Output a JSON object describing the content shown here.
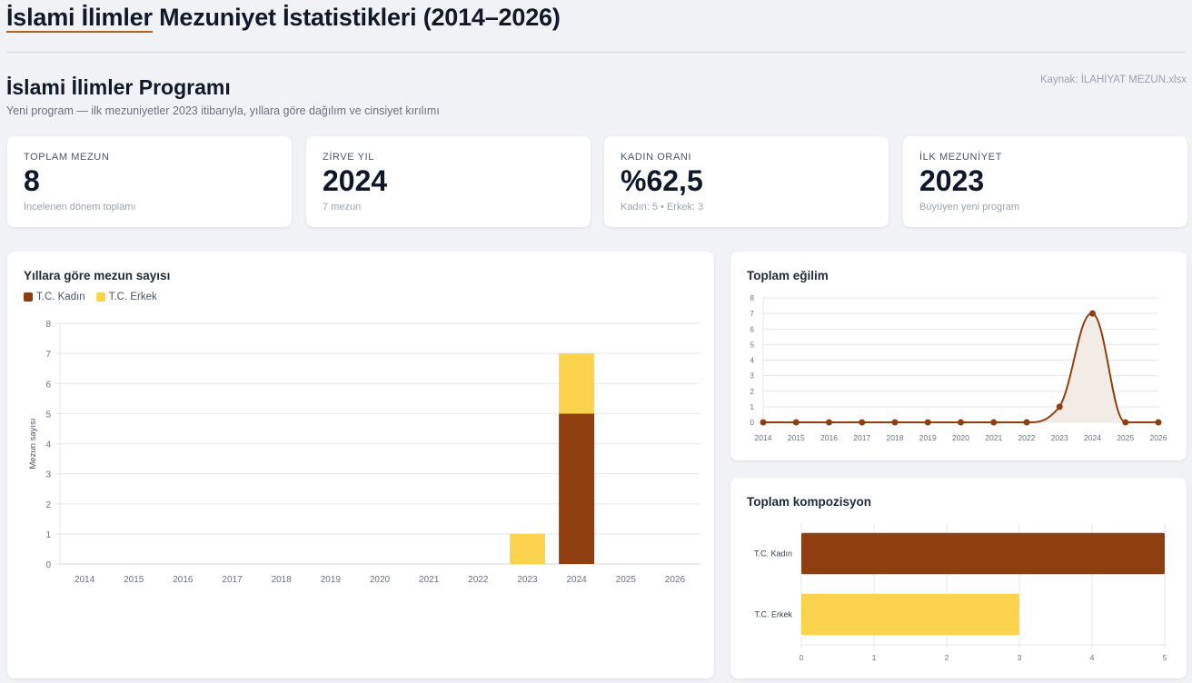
{
  "header": {
    "title_accent": "İslami İlimler",
    "title_rest": " Mezuniyet İstatistikleri (2014–2026)"
  },
  "section": {
    "title": "İslami İlimler Programı",
    "subtitle": "Yeni program — ilk mezuniyetler 2023 itibarıyla, yıllara göre dağılım ve cinsiyet kırılımı",
    "source": "Kaynak: İLAHİYAT MEZUN.xlsx"
  },
  "kpis": [
    {
      "label": "TOPLAM MEZUN",
      "value": "8",
      "hint": "İncelenen dönem toplamı"
    },
    {
      "label": "ZİRVE YIL",
      "value": "2024",
      "hint": "7 mezun"
    },
    {
      "label": "KADIN ORANI",
      "value": "%62,5",
      "hint": "Kadın: 5 • Erkek: 3"
    },
    {
      "label": "İLK MEZUNİYET",
      "value": "2023",
      "hint": "Büyüyen yeni program"
    }
  ],
  "colors": {
    "kadin": "#8f3f0f",
    "erkek": "#fcd34d",
    "line": "#8f3f0f",
    "area": "#f3ece6"
  },
  "chart_data": [
    {
      "type": "bar",
      "stacked": true,
      "title": "Yıllara göre mezun sayısı",
      "xlabel": "",
      "ylabel": "Mezun sayısı",
      "categories": [
        "2014",
        "2015",
        "2016",
        "2017",
        "2018",
        "2019",
        "2020",
        "2021",
        "2022",
        "2023",
        "2024",
        "2025",
        "2026"
      ],
      "series": [
        {
          "name": "T.C. Kadın",
          "values": [
            0,
            0,
            0,
            0,
            0,
            0,
            0,
            0,
            0,
            0,
            5,
            0,
            0
          ]
        },
        {
          "name": "T.C. Erkek",
          "values": [
            0,
            0,
            0,
            0,
            0,
            0,
            0,
            0,
            0,
            1,
            2,
            0,
            0
          ]
        }
      ],
      "ylim": [
        0,
        8
      ],
      "yticks": [
        "0",
        "1",
        "2",
        "3",
        "4",
        "5",
        "6",
        "7",
        "8"
      ],
      "grid": true,
      "legend": "top-left"
    },
    {
      "type": "area",
      "title": "Toplam eğilim",
      "categories": [
        "2014",
        "2015",
        "2016",
        "2017",
        "2018",
        "2019",
        "2020",
        "2021",
        "2022",
        "2023",
        "2024",
        "2025",
        "2026"
      ],
      "values": [
        0,
        0,
        0,
        0,
        0,
        0,
        0,
        0,
        0,
        1,
        7,
        0,
        0
      ],
      "ylim": [
        0,
        8
      ],
      "yticks": [
        "0",
        "1",
        "2",
        "3",
        "4",
        "5",
        "6",
        "7",
        "8"
      ],
      "grid": true
    },
    {
      "type": "bar",
      "orientation": "horizontal",
      "title": "Toplam kompozisyon",
      "categories": [
        "T.C. Kadın",
        "T.C. Erkek"
      ],
      "values": [
        5,
        3
      ],
      "xlim": [
        0,
        5
      ],
      "xticks": [
        "0",
        "1",
        "2",
        "3",
        "4",
        "5"
      ],
      "grid": true
    }
  ]
}
